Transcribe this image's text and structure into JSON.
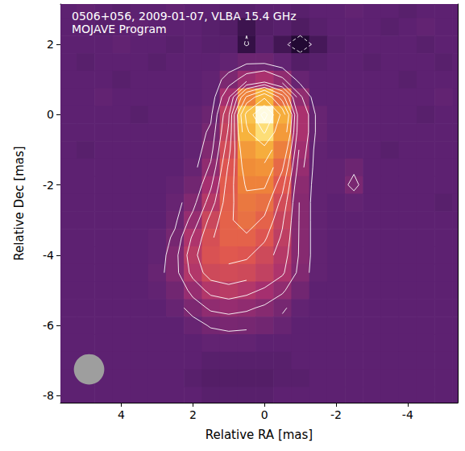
{
  "chart_data": {
    "type": "heatmap",
    "title": "0506+056, 2009-01-07, VLBA 15.4 GHz",
    "subtitle": "MOJAVE Program",
    "x_label": "Relative RA [mas]",
    "y_label": "Relative Dec [mas]",
    "xlim": [
      5.7,
      -5.4
    ],
    "ylim": [
      -8.2,
      3.15
    ],
    "xticks": [
      4,
      2,
      0,
      -2,
      -4
    ],
    "yticks": [
      2,
      0,
      -2,
      -4,
      -6,
      -8
    ],
    "grid": false,
    "x": [
      5.5,
      5.0,
      4.5,
      4.0,
      3.5,
      3.0,
      2.5,
      2.0,
      1.5,
      1.0,
      0.5,
      0.0,
      -0.5,
      -1.0,
      -1.5,
      -2.0,
      -2.5,
      -3.0,
      -3.5,
      -4.0,
      -4.5,
      -5.0,
      -5.5
    ],
    "y": [
      3.0,
      2.5,
      2.0,
      1.5,
      1.0,
      0.5,
      0.0,
      -0.5,
      -1.0,
      -1.5,
      -2.0,
      -2.5,
      -3.0,
      -3.5,
      -4.0,
      -4.5,
      -5.0,
      -5.5,
      -6.0,
      -6.5,
      -7.0,
      -7.5,
      -8.0
    ],
    "cells": [
      [
        0.4,
        0.5,
        0.4,
        0.3,
        0.4,
        0.4,
        0.5,
        0.4,
        0.4,
        0.3,
        0.3,
        0.4,
        0.4,
        0.3,
        0.4,
        0.4,
        0.5,
        0.4,
        0.4,
        0.3,
        0.4,
        0.4,
        0.4
      ],
      [
        0.4,
        0.4,
        0.3,
        0.4,
        0.5,
        0.4,
        0.4,
        0.4,
        0.3,
        0.2,
        -0.3,
        0.2,
        0.3,
        0.1,
        0.3,
        0.4,
        0.4,
        0.4,
        0.3,
        0.4,
        0.5,
        0.4,
        0.4
      ],
      [
        0.4,
        0.4,
        0.4,
        0.5,
        0.4,
        0.4,
        0.3,
        0.4,
        0.3,
        0.3,
        -0.5,
        0.3,
        -0.2,
        -0.9,
        -0.1,
        0.3,
        0.4,
        0.4,
        0.4,
        0.4,
        0.3,
        0.4,
        0.4
      ],
      [
        0.4,
        0.3,
        0.4,
        0.4,
        0.4,
        0.3,
        0.4,
        0.4,
        0.4,
        0.5,
        0.7,
        0.7,
        0.5,
        0.2,
        0.3,
        0.4,
        0.4,
        0.3,
        0.4,
        0.4,
        0.4,
        0.3,
        0.4
      ],
      [
        0.4,
        0.4,
        0.4,
        0.3,
        0.4,
        0.4,
        0.4,
        0.4,
        0.5,
        1.0,
        1.6,
        1.9,
        1.4,
        0.6,
        0.4,
        0.4,
        0.4,
        0.4,
        0.4,
        0.3,
        0.4,
        0.4,
        0.4
      ],
      [
        0.4,
        0.4,
        0.5,
        0.4,
        0.4,
        0.4,
        0.4,
        0.4,
        0.5,
        1.8,
        4.5,
        6.0,
        4.0,
        1.4,
        0.4,
        0.4,
        0.4,
        0.4,
        0.4,
        0.4,
        0.4,
        0.5,
        0.4
      ],
      [
        0.4,
        0.4,
        0.4,
        0.4,
        0.3,
        0.4,
        0.4,
        0.5,
        0.7,
        2.4,
        6.5,
        9.0,
        5.8,
        1.9,
        0.6,
        0.4,
        0.4,
        0.4,
        0.4,
        0.4,
        0.3,
        0.4,
        0.4
      ],
      [
        0.4,
        0.4,
        0.4,
        0.4,
        0.4,
        0.4,
        0.4,
        0.5,
        0.9,
        2.6,
        6.0,
        7.5,
        5.2,
        1.9,
        0.6,
        0.4,
        0.4,
        0.4,
        0.4,
        0.4,
        0.4,
        0.4,
        0.4
      ],
      [
        0.4,
        0.3,
        0.4,
        0.4,
        0.4,
        0.4,
        0.4,
        0.5,
        1.1,
        2.9,
        5.2,
        5.8,
        4.4,
        1.7,
        0.5,
        0.4,
        0.4,
        0.4,
        0.3,
        0.4,
        0.4,
        0.4,
        0.4
      ],
      [
        0.4,
        0.4,
        0.4,
        0.4,
        0.4,
        0.4,
        0.4,
        0.6,
        1.4,
        3.2,
        4.8,
        5.0,
        3.8,
        1.5,
        0.5,
        0.5,
        0.7,
        0.4,
        0.4,
        0.4,
        0.4,
        0.4,
        0.4
      ],
      [
        0.4,
        0.4,
        0.4,
        0.4,
        0.4,
        0.4,
        0.5,
        0.8,
        1.8,
        3.4,
        4.5,
        4.5,
        3.3,
        1.3,
        0.5,
        0.5,
        0.95,
        0.4,
        0.4,
        0.4,
        0.4,
        0.4,
        0.4
      ],
      [
        0.4,
        0.4,
        0.4,
        0.4,
        0.4,
        0.4,
        0.6,
        1.1,
        2.2,
        3.5,
        4.2,
        4.0,
        2.9,
        1.2,
        0.5,
        0.4,
        0.5,
        0.4,
        0.4,
        0.4,
        0.4,
        0.3,
        0.4
      ],
      [
        0.4,
        0.4,
        0.4,
        0.4,
        0.4,
        0.4,
        0.7,
        1.5,
        2.7,
        3.6,
        4.0,
        3.6,
        2.6,
        1.2,
        0.5,
        0.4,
        0.4,
        0.4,
        0.4,
        0.4,
        0.4,
        0.4,
        0.4
      ],
      [
        0.4,
        0.4,
        0.4,
        0.4,
        0.4,
        0.5,
        0.9,
        2.0,
        3.0,
        3.6,
        3.6,
        3.2,
        2.4,
        1.2,
        0.5,
        0.4,
        0.4,
        0.4,
        0.4,
        0.4,
        0.4,
        0.4,
        0.4
      ],
      [
        0.4,
        0.4,
        0.4,
        0.4,
        0.4,
        0.5,
        1.1,
        2.3,
        3.1,
        3.3,
        3.2,
        2.8,
        2.2,
        1.2,
        0.5,
        0.4,
        0.4,
        0.4,
        0.4,
        0.4,
        0.4,
        0.4,
        0.4
      ],
      [
        0.4,
        0.4,
        0.4,
        0.4,
        0.4,
        0.6,
        1.1,
        2.1,
        2.8,
        2.9,
        2.8,
        2.5,
        2.0,
        1.1,
        0.5,
        0.4,
        0.4,
        0.4,
        0.4,
        0.4,
        0.4,
        0.4,
        0.4
      ],
      [
        0.4,
        0.4,
        0.4,
        0.4,
        0.4,
        0.5,
        0.8,
        1.5,
        2.1,
        2.3,
        2.1,
        1.8,
        1.4,
        0.8,
        0.4,
        0.4,
        0.4,
        0.4,
        0.4,
        0.4,
        0.4,
        0.4,
        0.4
      ],
      [
        0.4,
        0.4,
        0.4,
        0.4,
        0.4,
        0.4,
        0.6,
        1.0,
        1.4,
        1.5,
        1.4,
        1.2,
        0.9,
        0.5,
        0.4,
        0.4,
        0.4,
        0.4,
        0.4,
        0.4,
        0.4,
        0.4,
        0.4
      ],
      [
        0.4,
        0.4,
        0.4,
        0.4,
        0.4,
        0.4,
        0.4,
        0.6,
        0.85,
        0.95,
        0.9,
        0.8,
        0.6,
        0.4,
        0.4,
        0.4,
        0.4,
        0.4,
        0.4,
        0.4,
        0.4,
        0.4,
        0.4
      ],
      [
        0.4,
        0.4,
        0.4,
        0.4,
        0.4,
        0.4,
        0.4,
        0.4,
        0.5,
        0.5,
        0.5,
        0.4,
        0.4,
        0.4,
        0.4,
        0.4,
        0.4,
        0.4,
        0.4,
        0.4,
        0.4,
        0.4,
        0.4
      ],
      [
        0.4,
        0.4,
        0.4,
        0.4,
        0.4,
        0.4,
        0.4,
        0.4,
        0.3,
        0.3,
        0.3,
        0.3,
        0.3,
        0.4,
        0.4,
        0.4,
        0.4,
        0.4,
        0.4,
        0.4,
        0.4,
        0.4,
        0.4
      ],
      [
        0.4,
        0.4,
        0.4,
        0.4,
        0.4,
        0.4,
        0.4,
        0.3,
        0.2,
        0.2,
        0.2,
        0.2,
        0.3,
        0.3,
        0.4,
        0.4,
        0.4,
        0.4,
        0.4,
        0.4,
        0.4,
        0.4,
        0.4
      ],
      [
        0.4,
        0.4,
        0.4,
        0.4,
        0.4,
        0.4,
        0.4,
        0.4,
        0.3,
        0.3,
        0.3,
        0.3,
        0.4,
        0.4,
        0.4,
        0.4,
        0.4,
        0.4,
        0.4,
        0.4,
        0.4,
        0.4,
        0.4
      ]
    ],
    "clim": [
      -1,
      9
    ],
    "contour_levels": [
      -0.4,
      0.8,
      1.3,
      1.9,
      2.5,
      3.1,
      3.7,
      4.4,
      5.2,
      6.2,
      7.4,
      8.5
    ],
    "beam": {
      "ra": 4.9,
      "dec": -7.25,
      "diameter": 0.85
    }
  }
}
